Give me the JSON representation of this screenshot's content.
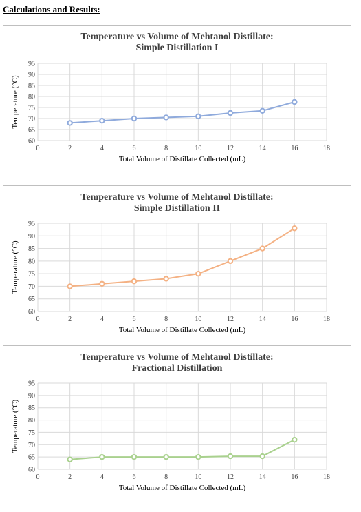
{
  "heading": "Calculations and Results:",
  "chart_data": [
    {
      "type": "line",
      "title": "Temperature vs Volume of Mehtanol Distillate:",
      "subtitle": "Simple Distillation I",
      "xlabel": "Total Volume of Distillate Collected (mL)",
      "ylabel": "Temperature (°C)",
      "xlim": [
        0,
        18
      ],
      "ylim": [
        60,
        95
      ],
      "xticks": [
        0,
        2,
        4,
        6,
        8,
        10,
        12,
        14,
        16,
        18
      ],
      "yticks": [
        60,
        65,
        70,
        75,
        80,
        85,
        90,
        95
      ],
      "grid": true,
      "color": "#8faadc",
      "x": [
        2,
        4,
        6,
        8,
        10,
        12,
        14,
        16
      ],
      "y": [
        68,
        69,
        70,
        70.5,
        71,
        72.5,
        73.5,
        77.5
      ]
    },
    {
      "type": "line",
      "title": "Temperature vs Volume of Mehtanol Distillate:",
      "subtitle": "Simple Distillation II",
      "xlabel": "Total Volume of Distillate Collected (mL)",
      "ylabel": "Temperature (°C)",
      "xlim": [
        0,
        18
      ],
      "ylim": [
        60,
        95
      ],
      "xticks": [
        0,
        2,
        4,
        6,
        8,
        10,
        12,
        14,
        16,
        18
      ],
      "yticks": [
        60,
        65,
        70,
        75,
        80,
        85,
        90,
        95
      ],
      "grid": true,
      "color": "#f4b183",
      "x": [
        2,
        4,
        6,
        8,
        10,
        12,
        14,
        16
      ],
      "y": [
        70,
        71,
        72,
        73,
        75,
        80,
        85,
        93
      ]
    },
    {
      "type": "line",
      "title": "Temperature vs Volume of Mehtanol Distillate:",
      "subtitle": "Fractional Distillation",
      "xlabel": "Total Volume of Distillate Collected (mL)",
      "ylabel": "Temperature (°C)",
      "xlim": [
        0,
        18
      ],
      "ylim": [
        60,
        95
      ],
      "xticks": [
        0,
        2,
        4,
        6,
        8,
        10,
        12,
        14,
        16,
        18
      ],
      "yticks": [
        60,
        65,
        70,
        75,
        80,
        85,
        90,
        95
      ],
      "grid": true,
      "color": "#a9d18e",
      "x": [
        2,
        4,
        6,
        8,
        10,
        12,
        14,
        16
      ],
      "y": [
        64,
        65,
        65,
        65,
        65,
        65.3,
        65.3,
        72
      ]
    }
  ]
}
